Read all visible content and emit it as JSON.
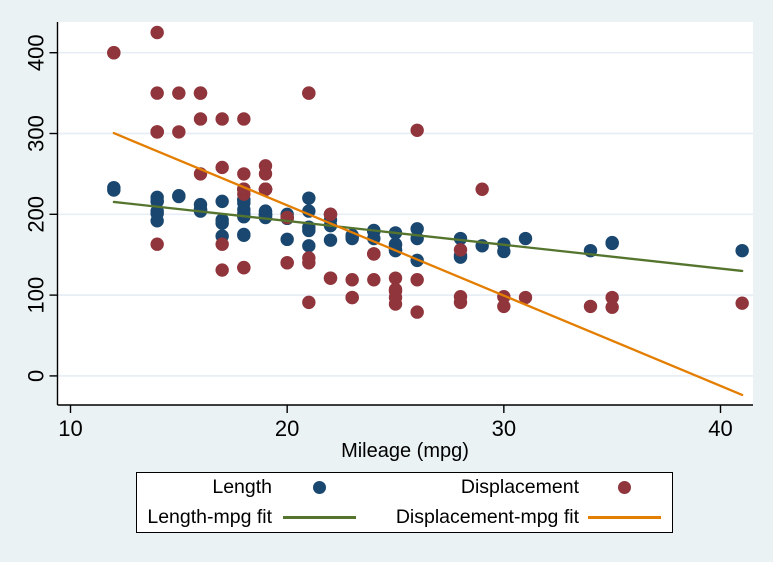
{
  "window": {
    "background": "#eaf2f3",
    "plot_background": "#ffffff",
    "grid_color": "#e7eef5",
    "axis_color": "#000000",
    "text_color": "#000000"
  },
  "chart_data": {
    "type": "scatter",
    "title": "",
    "xlabel": "Mileage (mpg)",
    "ylabel": "",
    "xlim": [
      9.4,
      41.5
    ],
    "ylim": [
      -36,
      438
    ],
    "x_ticks": [
      10,
      20,
      30,
      40
    ],
    "y_ticks": [
      0,
      100,
      200,
      300,
      400
    ],
    "grid": "horizontal",
    "marker_radius": 6.7,
    "series": [
      {
        "name": "Length",
        "type": "scatter",
        "color": "#1a476f",
        "x": [
          22,
          17,
          22,
          20,
          15,
          18,
          26,
          20,
          16,
          19,
          14,
          14,
          21,
          29,
          16,
          22,
          22,
          24,
          19,
          30,
          18,
          16,
          17,
          28,
          21,
          12,
          12,
          14,
          20,
          14,
          15,
          18,
          14,
          20,
          21,
          19,
          19,
          18,
          19,
          24,
          16,
          28,
          34,
          25,
          26,
          18,
          18,
          18,
          19,
          19,
          19,
          24,
          17,
          23,
          25,
          23,
          35,
          24,
          21,
          21,
          25,
          28,
          30,
          14,
          26,
          35,
          18,
          31,
          18,
          23,
          41,
          25,
          25,
          17
        ],
        "y": [
          186,
          173,
          168,
          196,
          222,
          218,
          170,
          200,
          204,
          200,
          221,
          204,
          204,
          161,
          212,
          193,
          200,
          179,
          197,
          163,
          206,
          206,
          216,
          147,
          180,
          233,
          230,
          201,
          169,
          216,
          223,
          197,
          216,
          195,
          220,
          200,
          196,
          218,
          200,
          180,
          206,
          170,
          155,
          162,
          182,
          201,
          214,
          198,
          204,
          199,
          203,
          179,
          189,
          174,
          177,
          170,
          165,
          170,
          184,
          161,
          163,
          149,
          154,
          192,
          143,
          164,
          174,
          170,
          175,
          172,
          155,
          155,
          156,
          193
        ]
      },
      {
        "name": "Displacement",
        "type": "scatter",
        "color": "#90353b",
        "x": [
          22,
          17,
          22,
          20,
          15,
          18,
          26,
          20,
          16,
          19,
          14,
          14,
          21,
          29,
          16,
          22,
          22,
          24,
          19,
          30,
          18,
          16,
          17,
          28,
          21,
          12,
          12,
          14,
          20,
          14,
          15,
          18,
          14,
          20,
          21,
          19,
          19,
          18,
          19,
          24,
          16,
          28,
          34,
          25,
          26,
          18,
          18,
          18,
          19,
          19,
          19,
          24,
          17,
          23,
          25,
          23,
          35,
          24,
          21,
          21,
          25,
          28,
          30,
          14,
          26,
          35,
          18,
          31,
          18,
          23,
          41,
          25,
          25,
          17
        ],
        "y": [
          121,
          258,
          121,
          196,
          350,
          231,
          304,
          196,
          350,
          231,
          425,
          350,
          350,
          231,
          250,
          200,
          200,
          151,
          250,
          98,
          318,
          318,
          318,
          98,
          140,
          400,
          400,
          302,
          140,
          302,
          302,
          250,
          302,
          140,
          350,
          260,
          231,
          231,
          231,
          151,
          350,
          156,
          86,
          105,
          119,
          225,
          231,
          231,
          231,
          231,
          231,
          151,
          131,
          97,
          121,
          119,
          85,
          119,
          146,
          91,
          107,
          91,
          86,
          163,
          79,
          97,
          134,
          97,
          134,
          97,
          90,
          89,
          97,
          163
        ]
      },
      {
        "name": "Length-mpg fit",
        "type": "line",
        "color": "#55752f",
        "x": [
          12,
          41
        ],
        "y": [
          215.3,
          129.9
        ]
      },
      {
        "name": "Displacement-mpg fit",
        "type": "line",
        "color": "#e37e00",
        "x": [
          12,
          41
        ],
        "y": [
          300.5,
          -23.5
        ]
      }
    ],
    "legend": {
      "position": "bottom",
      "rows": 2,
      "columns": 2,
      "entries": [
        {
          "label": "Length",
          "symbol": "dot",
          "color": "#1a476f"
        },
        {
          "label": "Displacement",
          "symbol": "dot",
          "color": "#90353b"
        },
        {
          "label": "Length-mpg fit",
          "symbol": "line",
          "color": "#55752f"
        },
        {
          "label": "Displacement-mpg fit",
          "symbol": "line",
          "color": "#e37e00"
        }
      ]
    }
  }
}
